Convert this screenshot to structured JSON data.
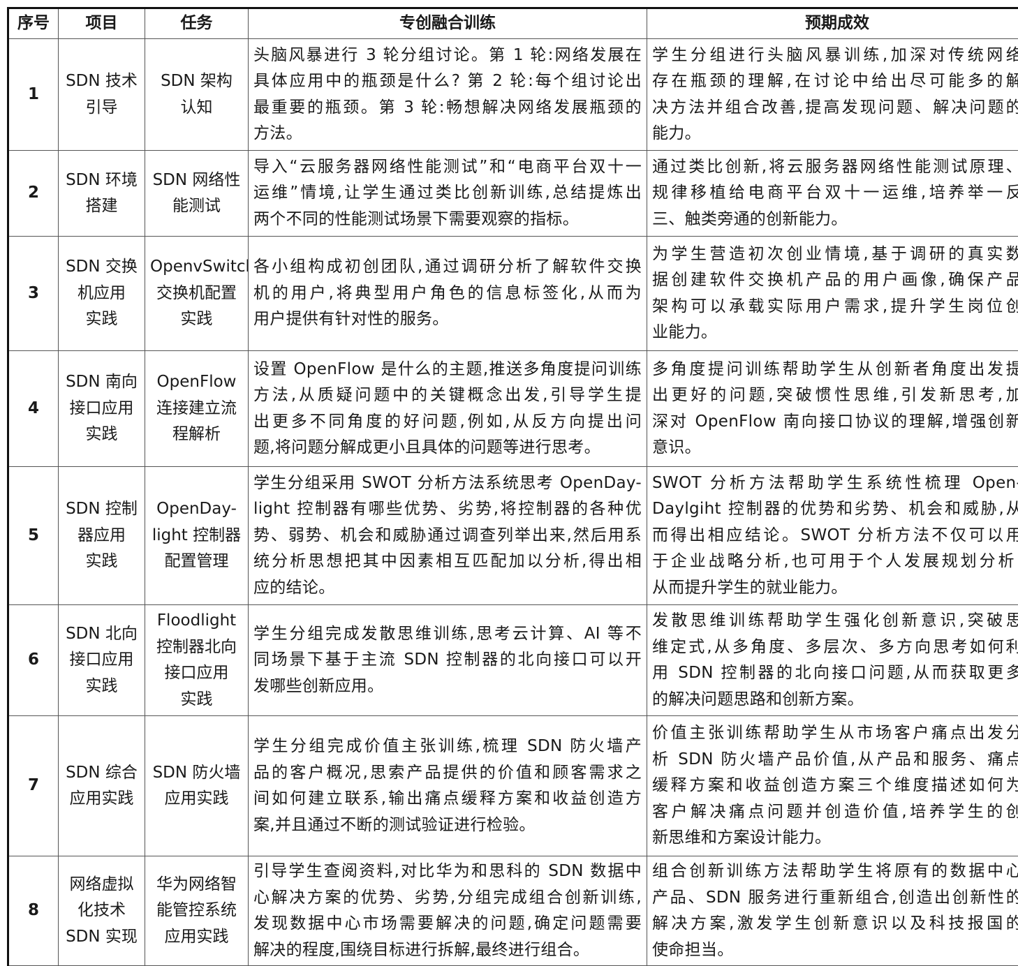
{
  "headers": [
    "序号",
    "项目",
    "任务",
    "专创融合训练",
    "预期成效"
  ],
  "rows": [
    {
      "no": "1",
      "project": [
        "SDN 技术",
        "引导"
      ],
      "task": [
        "SDN 架构",
        "认知"
      ],
      "training": [
        "头脑风暴进行 3 轮分组讨论。第 1 轮:网络发展在",
        "具体应用中的瓶颈是什么? 第 2 轮:每个组讨论出",
        "最重要的瓶颈。第 3 轮:畅想解决网络发展瓶颈的",
        "方法。"
      ],
      "outcome": [
        "学生分组进行头脑风暴训练,加深对传统网络",
        "存在瓶颈的理解,在讨论中给出尽可能多的解",
        "决方法并组合改善,提高发现问题、解决问题的",
        "能力。"
      ]
    },
    {
      "no": "2",
      "project": [
        "SDN 环境",
        "搭建"
      ],
      "task": [
        "SDN 网络性",
        "能测试"
      ],
      "training": [
        "导入“云服务器网络性能测试”和“电商平台双十一",
        "运维”情境,让学生通过类比创新训练,总结提炼出",
        "两个不同的性能测试场景下需要观察的指标。"
      ],
      "outcome": [
        "通过类比创新,将云服务器网络性能测试原理、",
        "规律移植给电商平台双十一运维,培养举一反",
        "三、触类旁通的创新能力。"
      ]
    },
    {
      "no": "3",
      "project": [
        "SDN 交换",
        "机应用",
        "实践"
      ],
      "task": [
        "OpenvSwitch",
        "交换机配置",
        "实践"
      ],
      "training": [
        "各小组构成初创团队,通过调研分析了解软件交换",
        "机的用户,将典型用户角色的信息标签化,从而为",
        "用户提供有针对性的服务。"
      ],
      "outcome": [
        "为学生营造初次创业情境,基于调研的真实数",
        "据创建软件交换机产品的用户画像,确保产品",
        "架构可以承载实际用户需求,提升学生岗位创",
        "业能力。"
      ]
    },
    {
      "no": "4",
      "project": [
        "SDN 南向",
        "接口应用",
        "实践"
      ],
      "task": [
        "OpenFlow",
        "连接建立流",
        "程解析"
      ],
      "training": [
        "设置 OpenFlow 是什么的主题,推送多角度提问训练",
        "方法,从质疑问题中的关键概念出发,引导学生提",
        "出更多不同角度的好问题,例如,从反方向提出问",
        "题,将问题分解成更小且具体的问题等进行思考。"
      ],
      "outcome": [
        "多角度提问训练帮助学生从创新者角度出发提",
        "出更好的问题,突破惯性思维,引发新思考,加",
        "深对 OpenFlow 南向接口协议的理解,增强创新",
        "意识。"
      ]
    },
    {
      "no": "5",
      "project": [
        "SDN 控制",
        "器应用",
        "实践"
      ],
      "task": [
        "OpenDay-",
        "light 控制器",
        "配置管理"
      ],
      "training": [
        "学生分组采用 SWOT 分析方法系统思考 OpenDay-",
        "light 控制器有哪些优势、劣势,将控制器的各种优",
        "势、弱势、机会和威胁通过调查列举出来,然后用系",
        "统分析思想把其中因素相互匹配加以分析,得出相",
        "应的结论。"
      ],
      "outcome": [
        "SWOT 分析方法帮助学生系统性梳理 Open-",
        "Daylgiht 控制器的优势和劣势、机会和威胁,从",
        "而得出相应结论。SWOT 分析方法不仅可以用",
        "于企业战略分析,也可用于个人发展规划分析,",
        "从而提升学生的就业能力。"
      ]
    },
    {
      "no": "6",
      "project": [
        "SDN 北向",
        "接口应用",
        "实践"
      ],
      "task": [
        "Floodlight",
        "控制器北向",
        "接口应用",
        "实践"
      ],
      "training": [
        "学生分组完成发散思维训练,思考云计算、AI 等不",
        "同场景下基于主流 SDN 控制器的北向接口可以开",
        "发哪些创新应用。"
      ],
      "outcome": [
        "发散思维训练帮助学生强化创新意识,突破思",
        "维定式,从多角度、多层次、多方向思考如何利",
        "用 SDN 控制器的北向接口问题,从而获取更多",
        "的解决问题思路和创新方案。"
      ]
    },
    {
      "no": "7",
      "project": [
        "SDN 综合",
        "应用实践"
      ],
      "task": [
        "SDN 防火墙",
        "应用实践"
      ],
      "training": [
        "学生分组完成价值主张训练,梳理 SDN 防火墙产",
        "品的客户概况,思索产品提供的价值和顾客需求之",
        "间如何建立联系,输出痛点缓释方案和收益创造方",
        "案,并且通过不断的测试验证进行检验。"
      ],
      "outcome": [
        "价值主张训练帮助学生从市场客户痛点出发分",
        "析 SDN 防火墙产品价值,从产品和服务、痛点",
        "缓释方案和收益创造方案三个维度描述如何为",
        "客户解决痛点问题并创造价值,培养学生的创",
        "新思维和方案设计能力。"
      ]
    },
    {
      "no": "8",
      "project": [
        "网络虚拟",
        "化技术",
        "SDN 实现"
      ],
      "task": [
        "华为网络智",
        "能管控系统",
        "应用实践"
      ],
      "training": [
        "引导学生查阅资料,对比华为和思科的 SDN 数据中",
        "心解决方案的优势、劣势,分组完成组合创新训练,",
        "发现数据中心市场需要解决的问题,确定问题需要",
        "解决的程度,围绕目标进行拆解,最终进行组合。"
      ],
      "outcome": [
        "组合创新训练方法帮助学生将原有的数据中心",
        "产品、SDN 服务进行重新组合,创造出创新性的",
        "解决方案,激发学生创新意识以及科技报国的",
        "使命担当。"
      ]
    }
  ]
}
